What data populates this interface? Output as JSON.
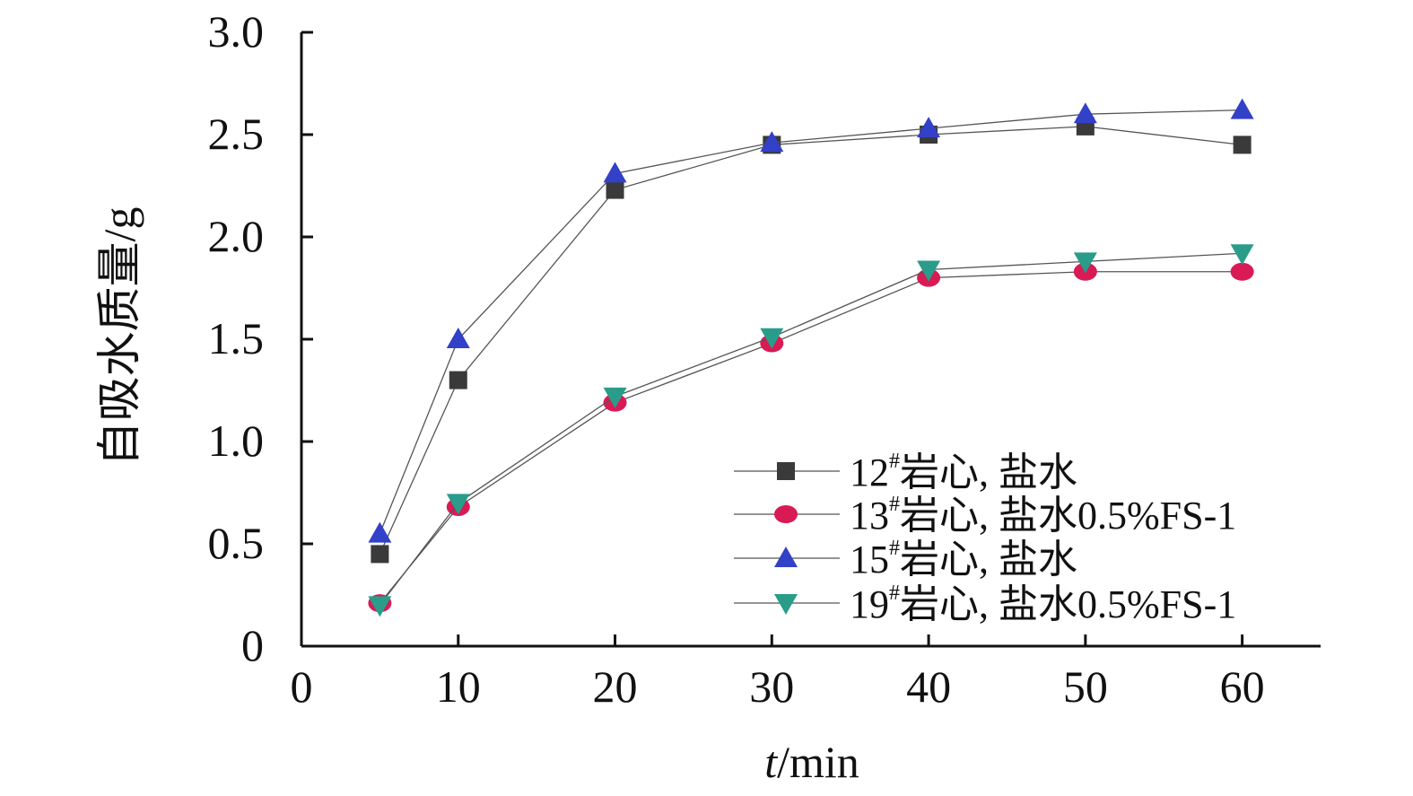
{
  "chart_data": {
    "type": "line",
    "title": "",
    "xlabel": {
      "italic": "t",
      "rest": "/min"
    },
    "ylabel": "自吸水质量/g",
    "xlim": [
      0,
      65
    ],
    "ylim": [
      0,
      3.0
    ],
    "x_ticks": [
      "0",
      "10",
      "20",
      "30",
      "40",
      "50",
      "60"
    ],
    "y_ticks": [
      "0",
      "0.5",
      "1.0",
      "1.5",
      "2.0",
      "2.5",
      "3.0"
    ],
    "grid": false,
    "legend_position": "bottom-right",
    "series": [
      {
        "name": "12#岩心, 盐水",
        "label_parts": {
          "num": "12",
          "sup": "#",
          "rest": "岩心, 盐水"
        },
        "marker": "square",
        "color": "#3a3a3a",
        "x": [
          5,
          10,
          20,
          30,
          40,
          50,
          60
        ],
        "y": [
          0.45,
          1.3,
          2.23,
          2.45,
          2.5,
          2.54,
          2.45
        ]
      },
      {
        "name": "13#岩心, 盐水0.5%FS-1",
        "label_parts": {
          "num": "13",
          "sup": "#",
          "rest": "岩心, 盐水0.5%FS-1"
        },
        "marker": "circle",
        "color": "#d81b55",
        "x": [
          5,
          10,
          20,
          30,
          40,
          50,
          60
        ],
        "y": [
          0.21,
          0.68,
          1.19,
          1.48,
          1.8,
          1.83,
          1.83
        ]
      },
      {
        "name": "15#岩心, 盐水",
        "label_parts": {
          "num": "15",
          "sup": "#",
          "rest": "岩心, 盐水"
        },
        "marker": "triangle-up",
        "color": "#3340c8",
        "x": [
          5,
          10,
          20,
          30,
          40,
          50,
          60
        ],
        "y": [
          0.55,
          1.5,
          2.31,
          2.46,
          2.53,
          2.6,
          2.62
        ]
      },
      {
        "name": "19#岩心, 盐水0.5%FS-1",
        "label_parts": {
          "num": "19",
          "sup": "#",
          "rest": "岩心, 盐水0.5%FS-1"
        },
        "marker": "triangle-down",
        "color": "#2a9d8a",
        "x": [
          5,
          10,
          20,
          30,
          40,
          50,
          60
        ],
        "y": [
          0.2,
          0.7,
          1.22,
          1.51,
          1.84,
          1.88,
          1.92
        ]
      }
    ]
  }
}
